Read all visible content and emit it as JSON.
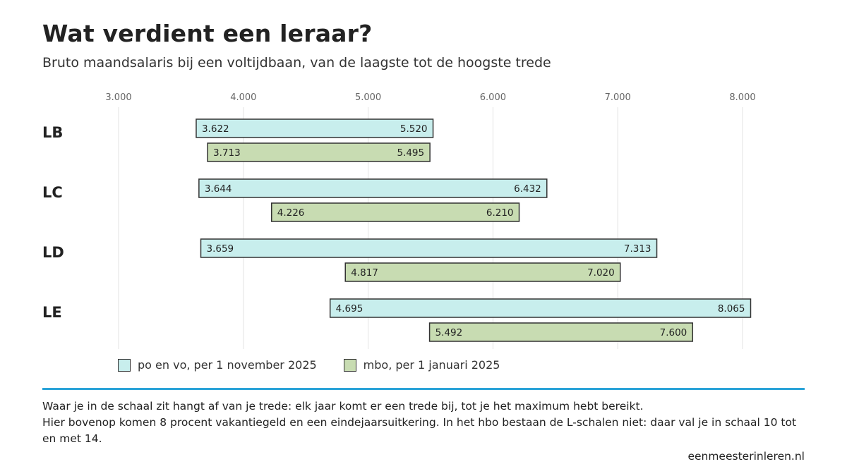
{
  "header": {
    "title": "Wat verdient een leraar?",
    "subtitle": "Bruto maandsalaris bij een voltijdbaan, van de laagste tot de hoogste trede"
  },
  "colors": {
    "po_vo": "#c8eeed",
    "mbo": "#c8dcb2",
    "bar_border": "#333333",
    "gridline": "#e3e3e3",
    "accent_rule": "#2aa3d8"
  },
  "chart_data": {
    "type": "bar",
    "orientation": "horizontal-range",
    "title": "Wat verdient een leraar?",
    "subtitle": "Bruto maandsalaris bij een voltijdbaan, van de laagste tot de hoogste trede",
    "xlim": [
      2400,
      8500
    ],
    "x_ticks": [
      3000,
      4000,
      5000,
      6000,
      7000,
      8000
    ],
    "x_tick_labels": [
      "3.000",
      "4.000",
      "5.000",
      "6.000",
      "7.000",
      "8.000"
    ],
    "x_axis_position": "top",
    "grid": true,
    "legend_position": "bottom-left",
    "categories": [
      "LB",
      "LC",
      "LD",
      "LE"
    ],
    "series": [
      {
        "name": "po en vo, per 1 november 2025",
        "color": "#c8eeed",
        "ranges": [
          [
            3622,
            5520
          ],
          [
            3644,
            6432
          ],
          [
            3659,
            7313
          ],
          [
            4695,
            8065
          ]
        ],
        "labels": [
          [
            "3.622",
            "5.520"
          ],
          [
            "3.644",
            "6.432"
          ],
          [
            "3.659",
            "7.313"
          ],
          [
            "4.695",
            "8.065"
          ]
        ]
      },
      {
        "name": "mbo, per 1 januari 2025",
        "color": "#c8dcb2",
        "ranges": [
          [
            3713,
            5495
          ],
          [
            4226,
            6210
          ],
          [
            4817,
            7020
          ],
          [
            5492,
            7600
          ]
        ],
        "labels": [
          [
            "3.713",
            "5.495"
          ],
          [
            "4.226",
            "6.210"
          ],
          [
            "4.817",
            "7.020"
          ],
          [
            "5.492",
            "7.600"
          ]
        ]
      }
    ]
  },
  "legend": {
    "items": [
      {
        "label": "po en vo, per 1 november 2025",
        "color": "#c8eeed"
      },
      {
        "label": "mbo, per 1 januari 2025",
        "color": "#c8dcb2"
      }
    ]
  },
  "footer": {
    "note_1": "Waar je in de schaal zit hangt af van je trede: elk jaar komt er een trede bij, tot je het maximum hebt bereikt.",
    "note_2": "Hier bovenop komen 8 procent vakantiegeld en een eindejaarsuitkering. In het hbo bestaan de L-schalen niet: daar val je in schaal 10 tot en met 14.",
    "source": "eenmeesterinleren.nl"
  }
}
